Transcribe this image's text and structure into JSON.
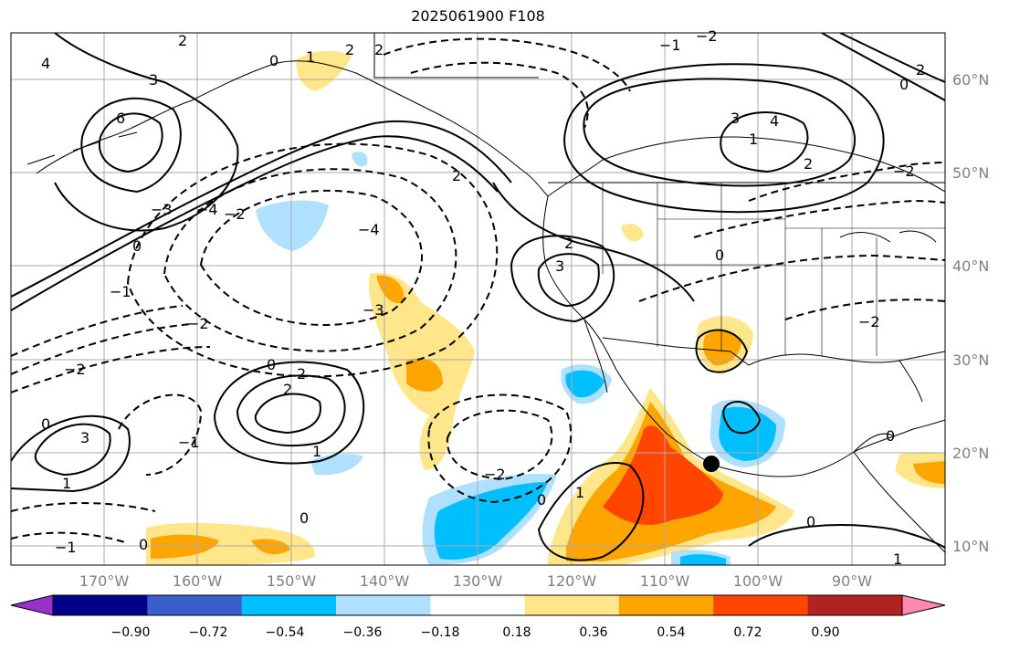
{
  "title": "2025061900 F108",
  "map": {
    "lon_range": [
      -180,
      -80
    ],
    "lat_range": [
      8,
      65
    ],
    "lat_labels": [
      "60°N",
      "50°N",
      "40°N",
      "30°N",
      "20°N",
      "10°N"
    ],
    "lon_labels": [
      "170°W",
      "160°W",
      "150°W",
      "140°W",
      "130°W",
      "120°W",
      "110°W",
      "100°W",
      "90°W"
    ],
    "gridlines": true,
    "marker": "black-dot"
  },
  "colorbar": {
    "colors": [
      "#9932cc",
      "#00008b",
      "#3a5fcd",
      "#00bfff",
      "#b0e0ff",
      "#ffffff",
      "#ffe68a",
      "#ffa500",
      "#ff4500",
      "#b22222",
      "#ff88b0"
    ],
    "ticks": [
      "−0.90",
      "−0.72",
      "−0.54",
      "−0.36",
      "−0.18",
      "0.18",
      "0.36",
      "0.54",
      "0.72",
      "0.90"
    ]
  },
  "contour_labels": [
    "6",
    "4",
    "3",
    "2",
    "2",
    "2",
    "1",
    "0",
    "0",
    "−1",
    "−2",
    "−3",
    "−4",
    "3",
    "4",
    "2",
    "0",
    "−2",
    "2",
    "3",
    "−4",
    "−3",
    "−2",
    "−1",
    "0",
    "−2",
    "2",
    "2",
    "0",
    "1",
    "2",
    "3",
    "0",
    "1",
    "−1",
    "−2",
    "0",
    "0",
    "1",
    "−2",
    "0",
    "1",
    "0",
    "2",
    "−2",
    "−1",
    "0",
    "1"
  ]
}
